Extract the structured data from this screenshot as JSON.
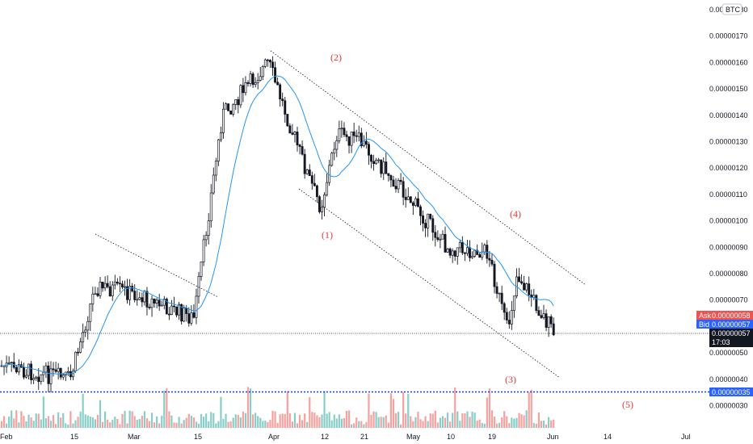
{
  "colors": {
    "up": "#26a69a",
    "down": "#ef5350",
    "candle": "#131722",
    "ma": "#2196f3",
    "trendline": "#131722",
    "annotation": "#e53935",
    "ask_bg": "#ef5350",
    "bid_bg": "#2962ff",
    "price_bg": "#131722",
    "level_bg": "#2962ff",
    "level_line": "#1e3fc9"
  },
  "header": {
    "currency": "BTC"
  },
  "price_axis": {
    "labels": [
      "0.00000180",
      "0.00000170",
      "0.00000160",
      "0.00000150",
      "0.00000140",
      "0.00000130",
      "0.00000120",
      "0.00000110",
      "0.00000100",
      "0.00000090",
      "0.00000080",
      "0.00000070",
      "0.00000060",
      "0.00000050",
      "0.00000040",
      "0.00000030"
    ]
  },
  "time_axis": {
    "labels": [
      "Feb",
      "15",
      "Mar",
      "15",
      "Apr",
      "12",
      "21",
      "May",
      "10",
      "19",
      "Jun",
      "14",
      "Jul"
    ]
  },
  "badges": {
    "ask_label": "Ask",
    "ask_value": "0.00000058",
    "bid_label": "Bid",
    "bid_value": "0.00000057",
    "last_value": "0.00000057",
    "countdown": "17:03",
    "level_value": "0.00000035"
  },
  "annotations": [
    "(1)",
    "(2)",
    "(3)",
    "(4)",
    "(5)"
  ],
  "chart_data": {
    "type": "candlestick",
    "symbol_quote": "BTC",
    "ylim": [
      2.5e-07,
      1.8e-06
    ],
    "horizontal_levels": [
      3.5e-07,
      5.7e-07
    ],
    "price_path": [
      {
        "date": "Feb 01",
        "close": 4.5e-07
      },
      {
        "date": "Feb 10",
        "close": 4.2e-07
      },
      {
        "date": "Feb 15",
        "close": 4e-07
      },
      {
        "date": "Feb 20",
        "close": 7.5e-07
      },
      {
        "date": "Mar 01",
        "close": 7.3e-07
      },
      {
        "date": "Mar 15",
        "close": 6.3e-07
      },
      {
        "date": "Mar 20",
        "close": 1.4e-06
      },
      {
        "date": "Apr 01",
        "close": 1.6e-06
      },
      {
        "date": "Apr 08",
        "close": 1.18e-06
      },
      {
        "date": "Apr 12",
        "close": 1.05e-06
      },
      {
        "date": "Apr 15",
        "close": 1.33e-06
      },
      {
        "date": "Apr 21",
        "close": 1.3e-06
      },
      {
        "date": "May 01",
        "close": 1.1e-06
      },
      {
        "date": "May 10",
        "close": 9e-07
      },
      {
        "date": "May 19",
        "close": 8.8e-07
      },
      {
        "date": "May 24",
        "close": 5.8e-07
      },
      {
        "date": "May 27",
        "close": 8e-07
      },
      {
        "date": "Jun 01",
        "close": 5.7e-07
      }
    ]
  }
}
